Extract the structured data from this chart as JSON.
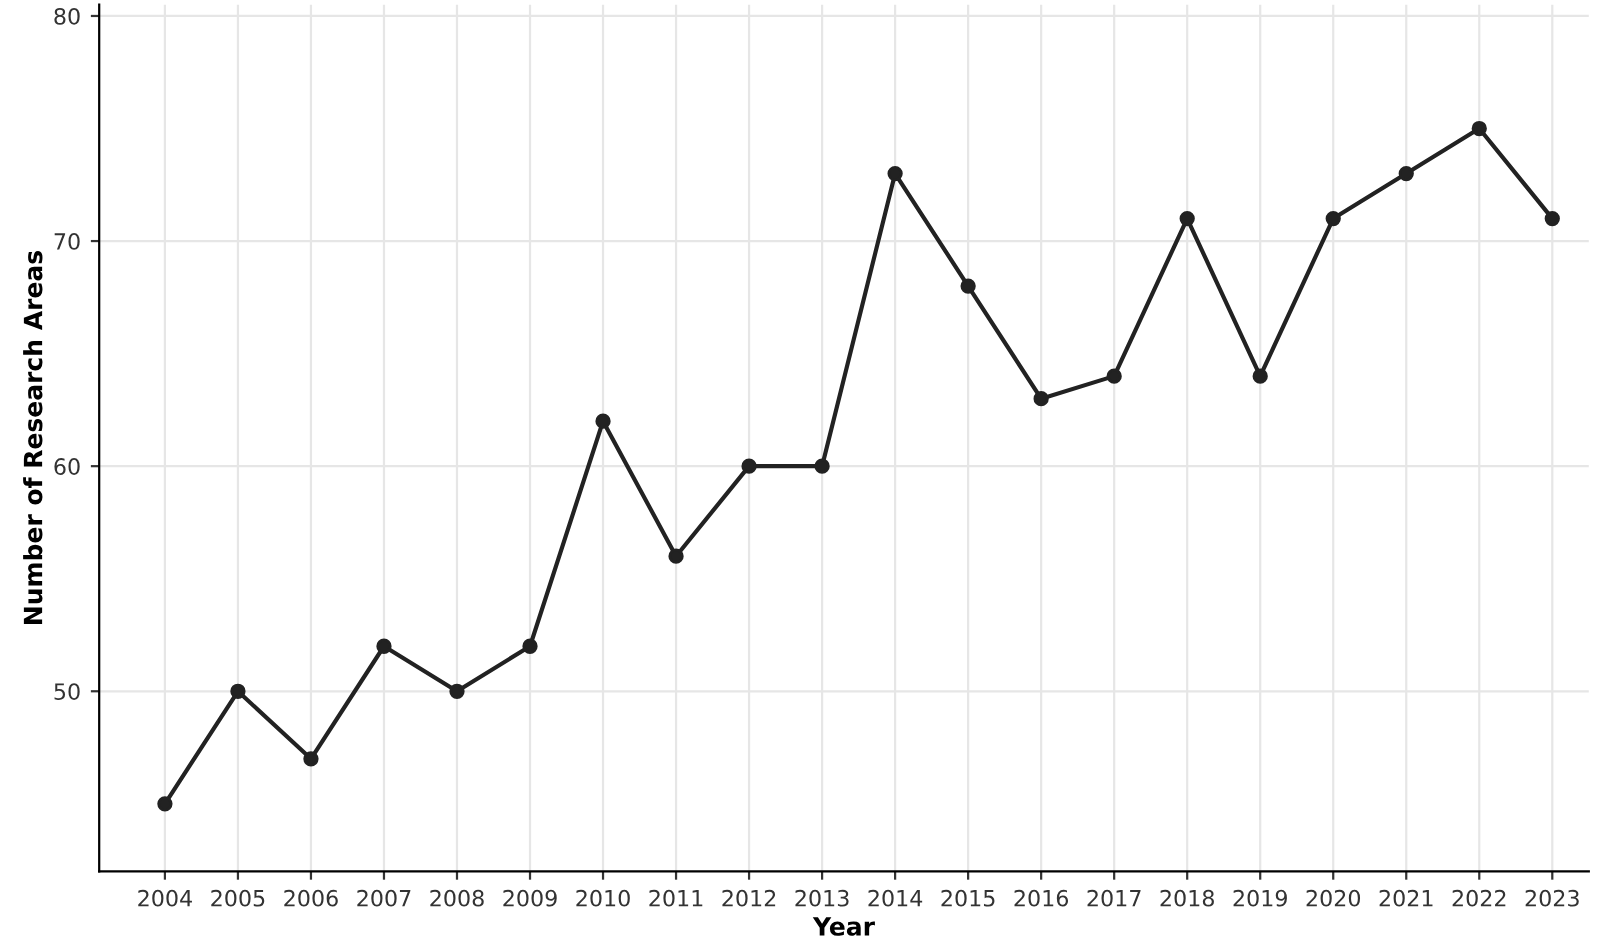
{
  "chart_data": {
    "type": "line",
    "xlabel": "Year",
    "ylabel": "Number of Research Areas",
    "categories": [
      "2004",
      "2005",
      "2006",
      "2007",
      "2008",
      "2009",
      "2010",
      "2011",
      "2012",
      "2013",
      "2014",
      "2015",
      "2016",
      "2017",
      "2018",
      "2019",
      "2020",
      "2021",
      "2022",
      "2023"
    ],
    "series": [
      {
        "color": "#222222",
        "values": [
          45,
          50,
          47,
          52,
          50,
          52,
          62,
          56,
          60,
          60,
          73,
          68,
          63,
          64,
          71,
          64,
          71,
          73,
          75,
          71
        ]
      }
    ],
    "ylim": [
      42,
      80.5
    ],
    "yticks": [
      50,
      60,
      70,
      80
    ],
    "grid": true,
    "marker": "circle",
    "line_style": "solid"
  }
}
